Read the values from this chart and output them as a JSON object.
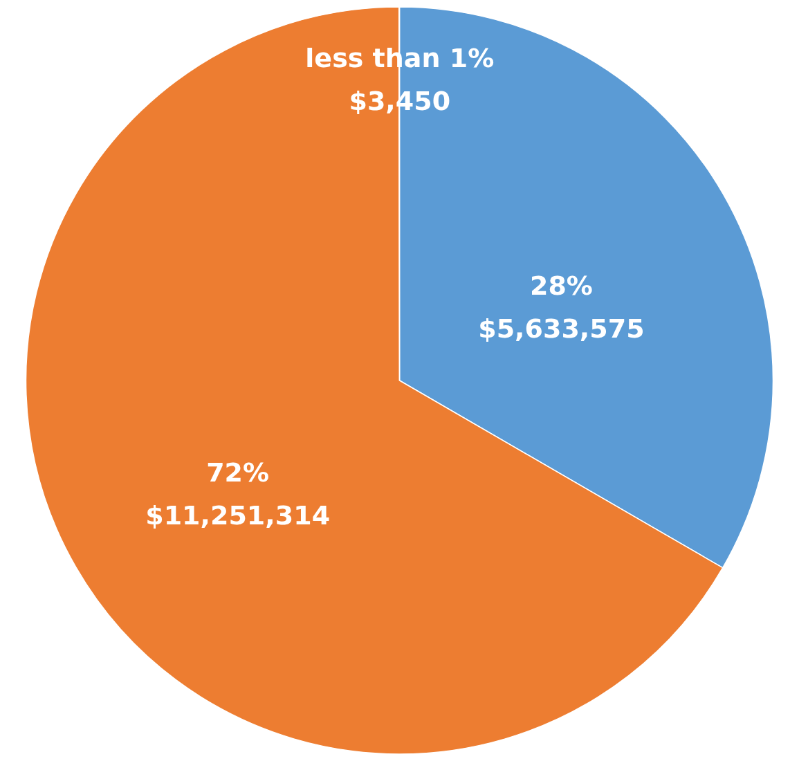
{
  "chart_data": {
    "type": "pie",
    "categories": [
      null,
      null,
      null
    ],
    "values": [
      5633575,
      11251314,
      3450
    ],
    "colors": [
      "#5b9bd5",
      "#ed7d31",
      "#a5a5a5"
    ],
    "value_labels": [
      "28%\n$5,633,575",
      "72%\n$11,251,314",
      "less than 1%\n$3,450"
    ],
    "legend": false
  }
}
